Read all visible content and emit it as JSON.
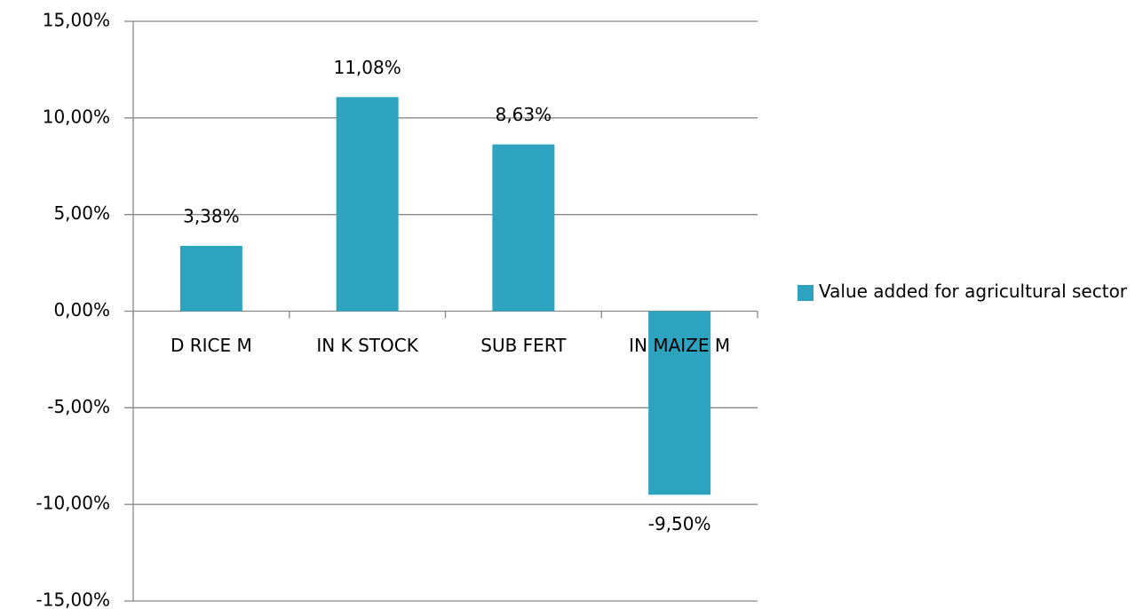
{
  "chart_data": {
    "type": "bar",
    "categories": [
      "D RICE M",
      "IN K STOCK",
      "SUB FERT",
      "IN MAIZE M"
    ],
    "series": [
      {
        "name": "Value added for agricultural sector",
        "color": "#2ea3bf",
        "values": [
          3.38,
          11.08,
          8.63,
          -9.5
        ],
        "value_labels": [
          "3,38%",
          "11,08%",
          "8,63%",
          "-9,50%"
        ]
      }
    ],
    "ylim": [
      -15,
      15
    ],
    "yticks": [
      {
        "value": -15,
        "label": "-15,00%"
      },
      {
        "value": -10,
        "label": "-10,00%"
      },
      {
        "value": -5,
        "label": "-5,00%"
      },
      {
        "value": 0,
        "label": "0,00%"
      },
      {
        "value": 5,
        "label": "5,00%"
      },
      {
        "value": 10,
        "label": "10,00%"
      },
      {
        "value": 15,
        "label": "15,00%"
      }
    ],
    "grid": true,
    "legend": "right"
  }
}
